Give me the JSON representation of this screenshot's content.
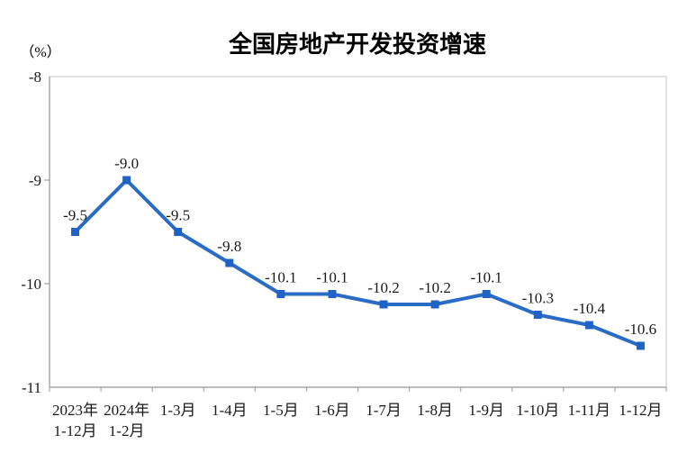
{
  "chart_data": {
    "type": "line",
    "title": "全国房地产开发投资增速",
    "unit_label": "（%）",
    "categories": [
      [
        "2023年",
        "1-12月"
      ],
      [
        "2024年",
        "1-2月"
      ],
      [
        "1-3月"
      ],
      [
        "1-4月"
      ],
      [
        "1-5月"
      ],
      [
        "1-6月"
      ],
      [
        "1-7月"
      ],
      [
        "1-8月"
      ],
      [
        "1-9月"
      ],
      [
        "1-10月"
      ],
      [
        "1-11月"
      ],
      [
        "1-12月"
      ]
    ],
    "values": [
      -9.5,
      -9.0,
      -9.5,
      -9.8,
      -10.1,
      -10.1,
      -10.2,
      -10.2,
      -10.1,
      -10.3,
      -10.4,
      -10.6
    ],
    "point_labels": [
      "-9.5",
      "-9.0",
      "-9.5",
      "-9.8",
      "-10.1",
      "-10.1",
      "-10.2",
      "-10.2",
      "-10.1",
      "-10.3",
      "-10.4",
      "-10.6"
    ],
    "xlabel": "",
    "ylabel": "（%）",
    "ylim": [
      -11,
      -8
    ],
    "yticks": [
      -8,
      -9,
      -10,
      -11
    ],
    "ytick_labels": [
      "-8",
      "-9",
      "-10",
      "-11"
    ],
    "grid": false,
    "legend_position": "none",
    "colors": {
      "line": "#2A6CC5",
      "marker": "#2063C6",
      "text": "#1A1A1A",
      "axis": "#A9A9A9",
      "border": "#D2D2D2",
      "background": "#FFFFFF"
    }
  }
}
